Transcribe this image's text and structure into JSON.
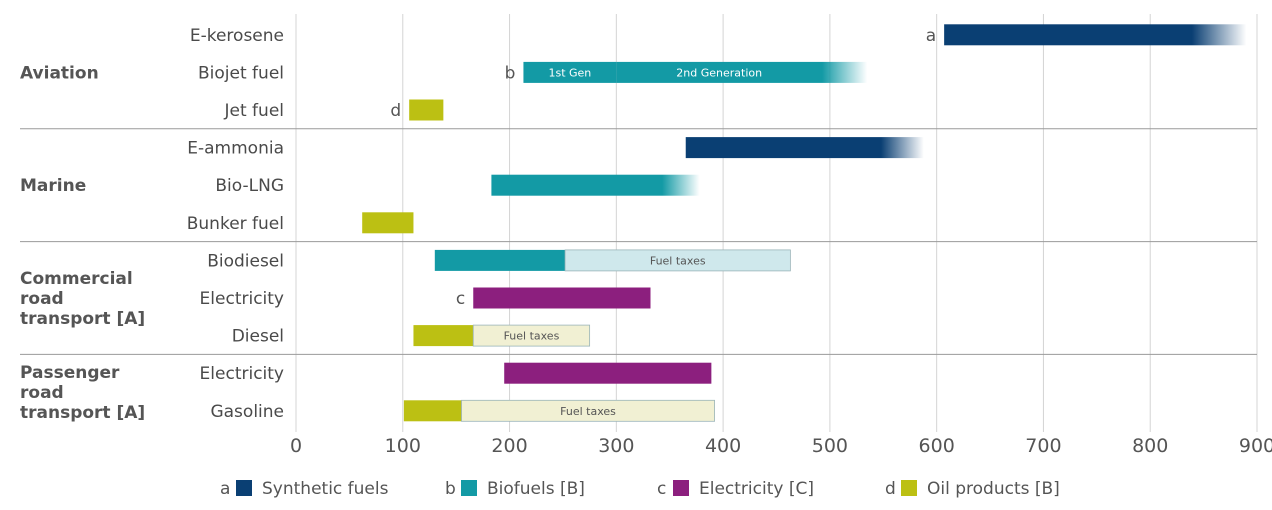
{
  "chart_data": {
    "type": "bar",
    "orientation": "horizontal-range",
    "xlim": [
      0,
      900
    ],
    "xticks": [
      0,
      100,
      200,
      300,
      400,
      500,
      600,
      700,
      800,
      900
    ],
    "grid": true,
    "legend_position": "bottom",
    "groups": [
      {
        "name": "Aviation",
        "rows": [
          {
            "label": "E-kerosene",
            "marker": "a",
            "segments": [
              {
                "type": "synthetic",
                "start": 607,
                "end": 890,
                "fade": true
              }
            ]
          },
          {
            "label": "Biojet fuel",
            "marker": "b",
            "segments": [
              {
                "type": "biofuel",
                "start": 213,
                "end": 300,
                "label": "1st Gen"
              },
              {
                "type": "biofuel",
                "start": 300,
                "end": 535,
                "label": "2nd Generation",
                "fade": true
              }
            ]
          },
          {
            "label": "Jet fuel",
            "marker": "d",
            "segments": [
              {
                "type": "oil",
                "start": 106,
                "end": 138
              }
            ]
          }
        ]
      },
      {
        "name": "Marine",
        "rows": [
          {
            "label": "E-ammonia",
            "segments": [
              {
                "type": "synthetic",
                "start": 365,
                "end": 588,
                "fade": true
              }
            ]
          },
          {
            "label": "Bio-LNG",
            "segments": [
              {
                "type": "biofuel",
                "start": 183,
                "end": 378,
                "fade": true
              }
            ]
          },
          {
            "label": "Bunker fuel",
            "segments": [
              {
                "type": "oil",
                "start": 62,
                "end": 110
              }
            ]
          }
        ]
      },
      {
        "name": "Commercial road transport [A]",
        "name_lines": [
          "Commercial",
          "road",
          "transport [A]"
        ],
        "rows": [
          {
            "label": "Biodiesel",
            "segments": [
              {
                "type": "biofuel",
                "start": 130,
                "end": 252
              },
              {
                "type": "tax_bio",
                "start": 252,
                "end": 463,
                "label": "Fuel taxes"
              }
            ]
          },
          {
            "label": "Electricity",
            "marker": "c",
            "segments": [
              {
                "type": "electricity",
                "start": 166,
                "end": 332
              }
            ]
          },
          {
            "label": "Diesel",
            "segments": [
              {
                "type": "oil",
                "start": 110,
                "end": 166
              },
              {
                "type": "tax_oil",
                "start": 166,
                "end": 275,
                "label": "Fuel taxes"
              }
            ]
          }
        ]
      },
      {
        "name": "Passenger road transport [A]",
        "name_lines": [
          "Passenger",
          "road",
          "transport [A]"
        ],
        "rows": [
          {
            "label": "Electricity",
            "segments": [
              {
                "type": "electricity",
                "start": 195,
                "end": 389
              }
            ]
          },
          {
            "label": "Gasoline",
            "segments": [
              {
                "type": "oil",
                "start": 101,
                "end": 155
              },
              {
                "type": "tax_oil",
                "start": 155,
                "end": 392,
                "label": "Fuel taxes"
              }
            ]
          }
        ]
      }
    ],
    "legend": [
      {
        "key": "a",
        "label": "Synthetic fuels",
        "type": "synthetic"
      },
      {
        "key": "b",
        "label": "Biofuels [B]",
        "type": "biofuel"
      },
      {
        "key": "c",
        "label": "Electricity [C]",
        "type": "electricity"
      },
      {
        "key": "d",
        "label": "Oil products [B]",
        "type": "oil"
      }
    ],
    "colors": {
      "synthetic": "#0a3f73",
      "biofuel": "#139aa5",
      "electricity": "#8c1f7e",
      "oil": "#bcc013",
      "tax_bio": "#cfe8ec",
      "tax_oil": "#f1f0d3"
    },
    "label_colors": {
      "synthetic": "#ffffff",
      "biofuel": "#ffffff",
      "electricity": "#ffffff",
      "oil": "#444444",
      "tax_bio": "#555555",
      "tax_oil": "#555555"
    }
  }
}
